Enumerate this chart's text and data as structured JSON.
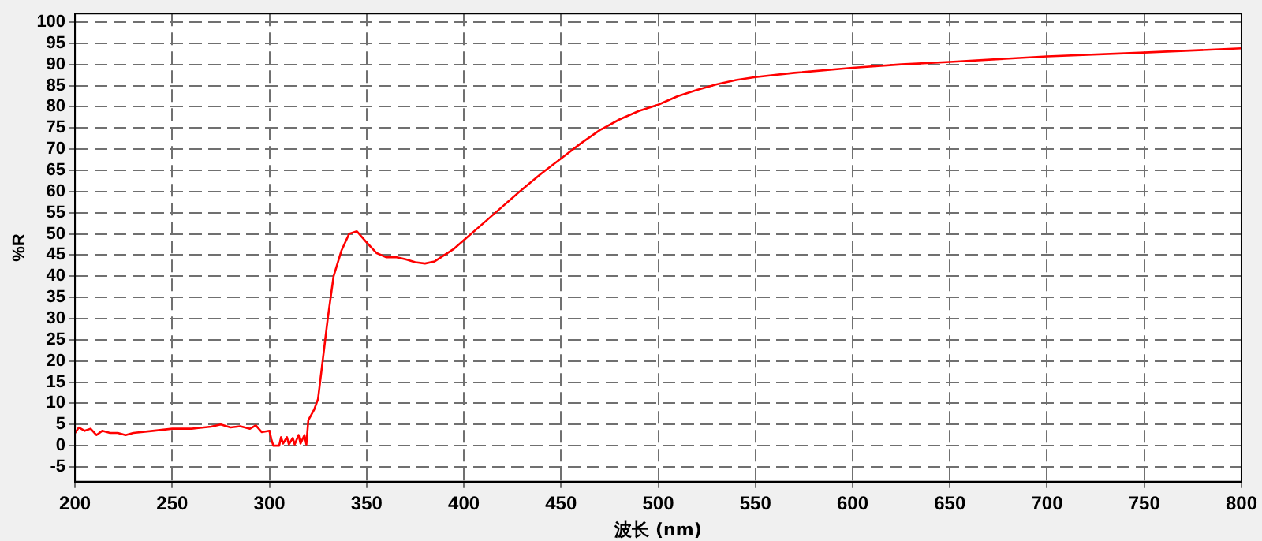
{
  "chart_data": {
    "type": "line",
    "xlabel": "波长 (nm)",
    "ylabel": "%R",
    "xlim": [
      200,
      800
    ],
    "xticks": [
      200,
      250,
      300,
      350,
      400,
      450,
      500,
      550,
      600,
      650,
      700,
      750,
      800
    ],
    "ylim": [
      -8.5,
      102
    ],
    "yticks": [
      -5,
      0,
      5,
      10,
      15,
      20,
      25,
      30,
      35,
      40,
      45,
      50,
      55,
      60,
      65,
      70,
      75,
      80,
      85,
      90,
      95,
      100
    ],
    "grid": true,
    "legend": false,
    "marker": "none",
    "line_style": "solid",
    "series": [
      {
        "color": "#ff0000",
        "x": [
          200,
          202,
          205,
          208,
          211,
          214,
          218,
          222,
          226,
          230,
          240,
          250,
          260,
          270,
          275,
          280,
          285,
          290,
          293,
          296,
          300,
          301,
          302,
          305,
          306,
          307,
          309,
          310,
          312,
          313,
          315,
          316,
          318,
          319,
          320,
          323,
          325,
          330,
          333,
          337,
          341,
          345,
          350,
          355,
          360,
          365,
          370,
          375,
          380,
          385,
          390,
          395,
          400,
          410,
          420,
          430,
          440,
          450,
          460,
          470,
          480,
          490,
          500,
          510,
          520,
          530,
          540,
          550,
          570,
          600,
          625,
          650,
          700,
          750,
          800
        ],
        "values": [
          3,
          4.3,
          3.5,
          4,
          2.5,
          3.5,
          3,
          3,
          2.5,
          3,
          3.5,
          4,
          4,
          4.5,
          5,
          4.3,
          4.6,
          4,
          4.8,
          3.2,
          3.5,
          1.5,
          0,
          0,
          2,
          0.5,
          2,
          0.3,
          1.8,
          0.3,
          2.5,
          0.5,
          2.5,
          0.3,
          6,
          8.5,
          11,
          30,
          40,
          46,
          50,
          50.6,
          48,
          45.5,
          44.5,
          44.5,
          44,
          43.3,
          43,
          43.5,
          45,
          46.5,
          48.5,
          52.5,
          56.5,
          60.5,
          64.3,
          67.8,
          71.3,
          74.5,
          77,
          79,
          80.5,
          82.5,
          84,
          85.3,
          86.3,
          87,
          88,
          89.2,
          90,
          90.6,
          91.9,
          92.8,
          93.8
        ]
      }
    ]
  }
}
